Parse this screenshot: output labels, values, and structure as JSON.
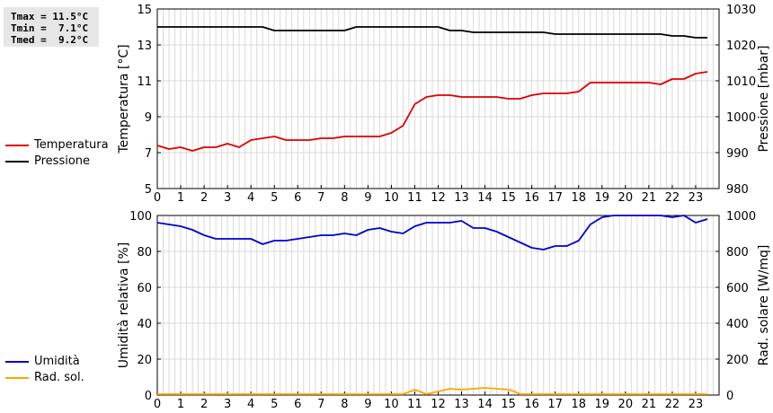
{
  "stats": {
    "tmax": "Tmax = 11.5°C",
    "tmin": "Tmin =  7.1°C",
    "tmed": "Tmed =  9.2°C"
  },
  "chart_data": [
    {
      "type": "line",
      "x_ticks": [
        "0",
        "1",
        "2",
        "3",
        "4",
        "5",
        "6",
        "7",
        "8",
        "9",
        "10",
        "11",
        "12",
        "13",
        "14",
        "15",
        "16",
        "17",
        "18",
        "19",
        "20",
        "21",
        "22",
        "23"
      ],
      "xlim": [
        0,
        24
      ],
      "ylabel": "Temperatura [°C]",
      "y_ticks": [
        "5",
        "7",
        "9",
        "11",
        "13",
        "15"
      ],
      "ylim": [
        5,
        15
      ],
      "y2label": "Pressione [mbar]",
      "y2_ticks": [
        "980",
        "990",
        "1000",
        "1010",
        "1020",
        "1030"
      ],
      "y2lim": [
        980,
        1030
      ],
      "grid": true,
      "legend_position": "left",
      "series": [
        {
          "name": "Temperatura",
          "axis": "left",
          "color": "#dd0000",
          "x": [
            0,
            0.5,
            1,
            1.5,
            2,
            2.5,
            3,
            3.5,
            4,
            4.5,
            5,
            5.5,
            6,
            6.5,
            7,
            7.5,
            8,
            8.5,
            9,
            9.5,
            10,
            10.5,
            11,
            11.5,
            12,
            12.5,
            13,
            13.5,
            14,
            14.5,
            15,
            15.5,
            16,
            16.5,
            17,
            17.5,
            18,
            18.5,
            19,
            19.5,
            20,
            20.5,
            21,
            21.5,
            22,
            22.5,
            23,
            23.5
          ],
          "y": [
            7.4,
            7.2,
            7.3,
            7.1,
            7.3,
            7.3,
            7.5,
            7.3,
            7.7,
            7.8,
            7.9,
            7.7,
            7.7,
            7.7,
            7.8,
            7.8,
            7.9,
            7.9,
            7.9,
            7.9,
            8.1,
            8.5,
            9.7,
            10.1,
            10.2,
            10.2,
            10.1,
            10.1,
            10.1,
            10.1,
            10.0,
            10.0,
            10.2,
            10.3,
            10.3,
            10.3,
            10.4,
            10.9,
            10.9,
            10.9,
            10.9,
            10.9,
            10.9,
            10.8,
            11.1,
            11.1,
            11.4,
            11.5
          ]
        },
        {
          "name": "Pressione",
          "axis": "right",
          "color": "#000000",
          "x": [
            0,
            1,
            2,
            3,
            4,
            4.5,
            5,
            5.5,
            6,
            7,
            8,
            8.5,
            9,
            10,
            11,
            12,
            12.5,
            13,
            13.5,
            14,
            15,
            16,
            16.5,
            17,
            18,
            19,
            20,
            21,
            21.5,
            22,
            22.5,
            23,
            23.5
          ],
          "y": [
            1025,
            1025,
            1025,
            1025,
            1025,
            1025,
            1024,
            1024,
            1024,
            1024,
            1024,
            1025,
            1025,
            1025,
            1025,
            1025,
            1024,
            1024,
            1023.5,
            1023.5,
            1023.5,
            1023.5,
            1023.5,
            1023,
            1023,
            1023,
            1023,
            1023,
            1023,
            1022.5,
            1022.5,
            1022,
            1022
          ]
        }
      ]
    },
    {
      "type": "line",
      "x_ticks": [
        "0",
        "1",
        "2",
        "3",
        "4",
        "5",
        "6",
        "7",
        "8",
        "9",
        "10",
        "11",
        "12",
        "13",
        "14",
        "15",
        "16",
        "17",
        "18",
        "19",
        "20",
        "21",
        "22",
        "23"
      ],
      "xlim": [
        0,
        24
      ],
      "ylabel": "Umidità relativa [%]",
      "y_ticks": [
        "0",
        "20",
        "40",
        "60",
        "80",
        "100"
      ],
      "ylim": [
        0,
        100
      ],
      "y2label": "Rad. solare [W/mq]",
      "y2_ticks": [
        "0",
        "200",
        "400",
        "600",
        "800",
        "1000"
      ],
      "y2lim": [
        0,
        1000
      ],
      "grid": true,
      "legend_position": "left",
      "series": [
        {
          "name": "Umidità",
          "axis": "left",
          "color": "#0000cc",
          "x": [
            0,
            0.5,
            1,
            1.5,
            2,
            2.5,
            3,
            3.5,
            4,
            4.5,
            5,
            5.5,
            6,
            6.5,
            7,
            7.5,
            8,
            8.5,
            9,
            9.5,
            10,
            10.5,
            11,
            11.5,
            12,
            12.5,
            13,
            13.5,
            14,
            14.5,
            15,
            15.5,
            16,
            16.5,
            17,
            17.5,
            18,
            18.5,
            19,
            19.5,
            20,
            20.5,
            21,
            21.5,
            22,
            22.5,
            23,
            23.5
          ],
          "y": [
            96,
            95,
            94,
            92,
            89,
            87,
            87,
            87,
            87,
            84,
            86,
            86,
            87,
            88,
            89,
            89,
            90,
            89,
            92,
            93,
            91,
            90,
            94,
            96,
            96,
            96,
            97,
            93,
            93,
            91,
            88,
            85,
            82,
            81,
            83,
            83,
            86,
            95,
            99,
            100,
            100,
            100,
            100,
            100,
            99,
            100,
            96,
            98
          ]
        },
        {
          "name": "Rad. sol.",
          "axis": "right",
          "color": "#ffa500",
          "x": [
            0,
            1,
            2,
            3,
            4,
            5,
            6,
            7,
            8,
            9,
            10,
            10.5,
            11,
            11.5,
            12,
            12.5,
            13,
            13.5,
            14,
            14.5,
            15,
            15.25,
            15.5,
            16,
            17,
            18,
            19,
            20,
            21,
            22,
            23,
            23.5
          ],
          "y": [
            5,
            5,
            5,
            5,
            5,
            5,
            5,
            5,
            5,
            5,
            5,
            5,
            30,
            5,
            20,
            35,
            30,
            35,
            40,
            35,
            30,
            20,
            5,
            5,
            5,
            5,
            5,
            5,
            5,
            5,
            5,
            5
          ]
        }
      ]
    }
  ]
}
